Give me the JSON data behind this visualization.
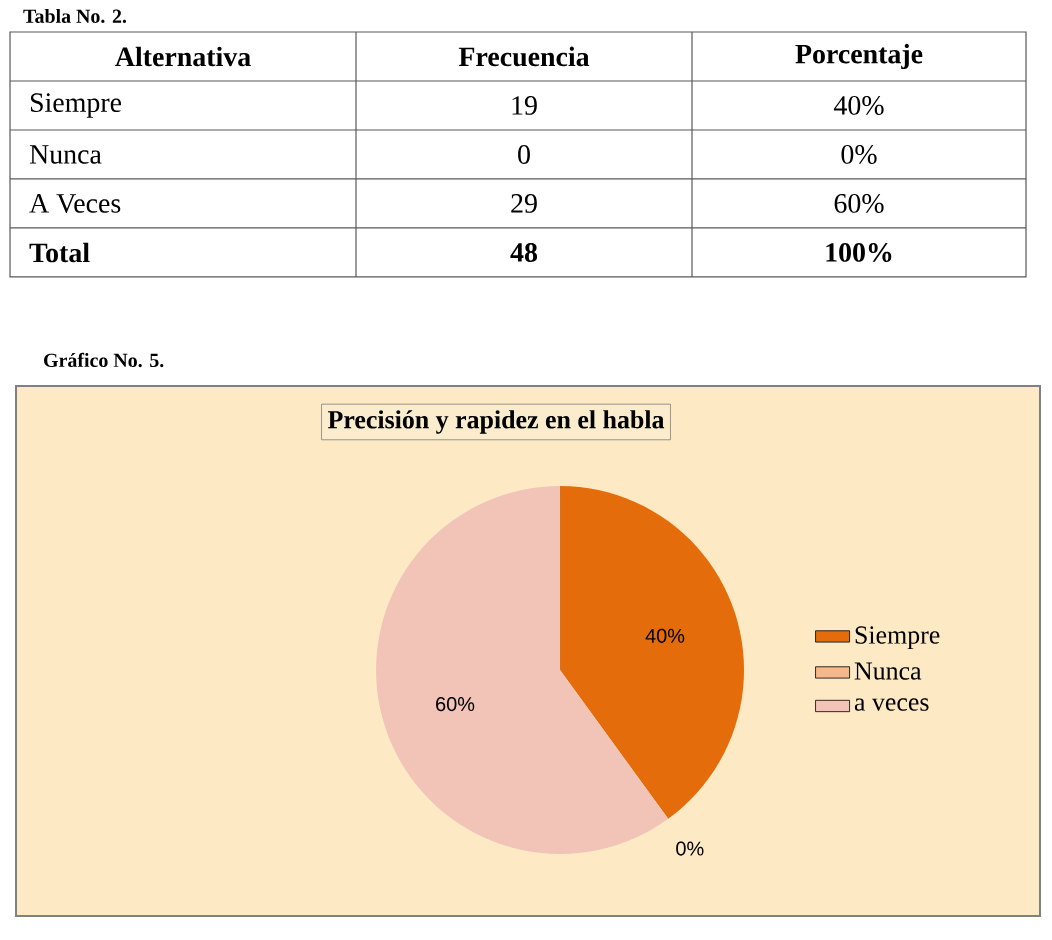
{
  "chart_data": {
    "type": "pie",
    "title": "Precisión y rapidez en el habla",
    "categories": [
      "Siempre",
      "Nunca",
      "a veces"
    ],
    "values": [
      40,
      0,
      60
    ],
    "colors": [
      "#e46c0a",
      "#f5b88c",
      "#f2c4b8"
    ],
    "value_labels": [
      "40%",
      "0%",
      "60%"
    ],
    "legend": "right",
    "annotations": [
      "Tabla No. 2.",
      "Alternativa",
      "Frecuencia",
      "Porcentaje",
      "Siempre",
      "19",
      "40%",
      "Nunca",
      "0",
      "0%",
      "A Veces",
      "29",
      "60%",
      "Total",
      "48",
      "100%",
      "Gráfico No. 5."
    ]
  }
}
